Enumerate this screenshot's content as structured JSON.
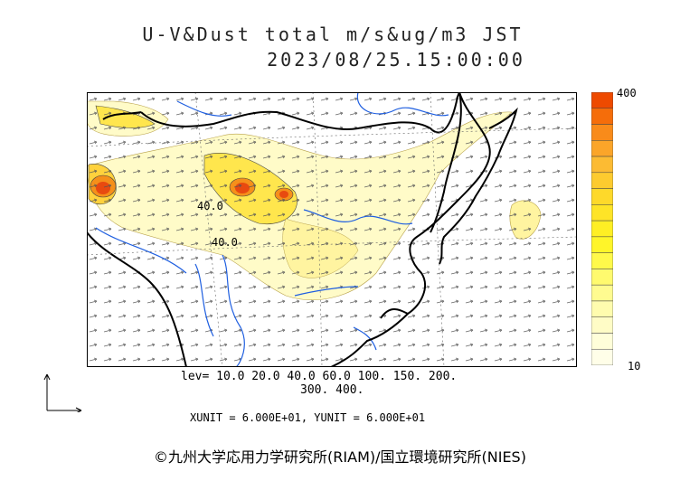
{
  "header": {
    "title_line1": "U-V&Dust total m/s&ug/m3 JST",
    "title_line2": "2023/08/25.15:00:00"
  },
  "colorbar": {
    "max_label": "400",
    "min_label": "10",
    "colors_top_to_bottom": [
      "#ee4a00",
      "#f56d0a",
      "#f98b1a",
      "#fba529",
      "#fcbb33",
      "#fdcb2f",
      "#fed92a",
      "#fee427",
      "#ffef24",
      "#fff529",
      "#fff94a",
      "#fffa6e",
      "#fffb90",
      "#fffcae",
      "#fffcc6",
      "#fffed9",
      "#fffee8"
    ]
  },
  "map_labels": {
    "contour_label_a": "40.0",
    "contour_label_b": "40.0"
  },
  "legend": {
    "lev_line1": "lev= 10.0 20.0 40.0 60.0 100. 150. 200.",
    "lev_line2": "300. 400.",
    "units": "XUNIT = 6.000E+01, YUNIT = 6.000E+01"
  },
  "footer": {
    "copyright": "©九州大学応用力学研究所(RIAM)/国立環境研究所(NIES)"
  },
  "map_style": {
    "coastline_color": "#000000",
    "river_color": "#1f5fe0",
    "dust_light": "#fffbc8",
    "dust_mid": "#ffe64d",
    "dust_high": "#f5901a",
    "dust_peak": "#e84a10"
  }
}
